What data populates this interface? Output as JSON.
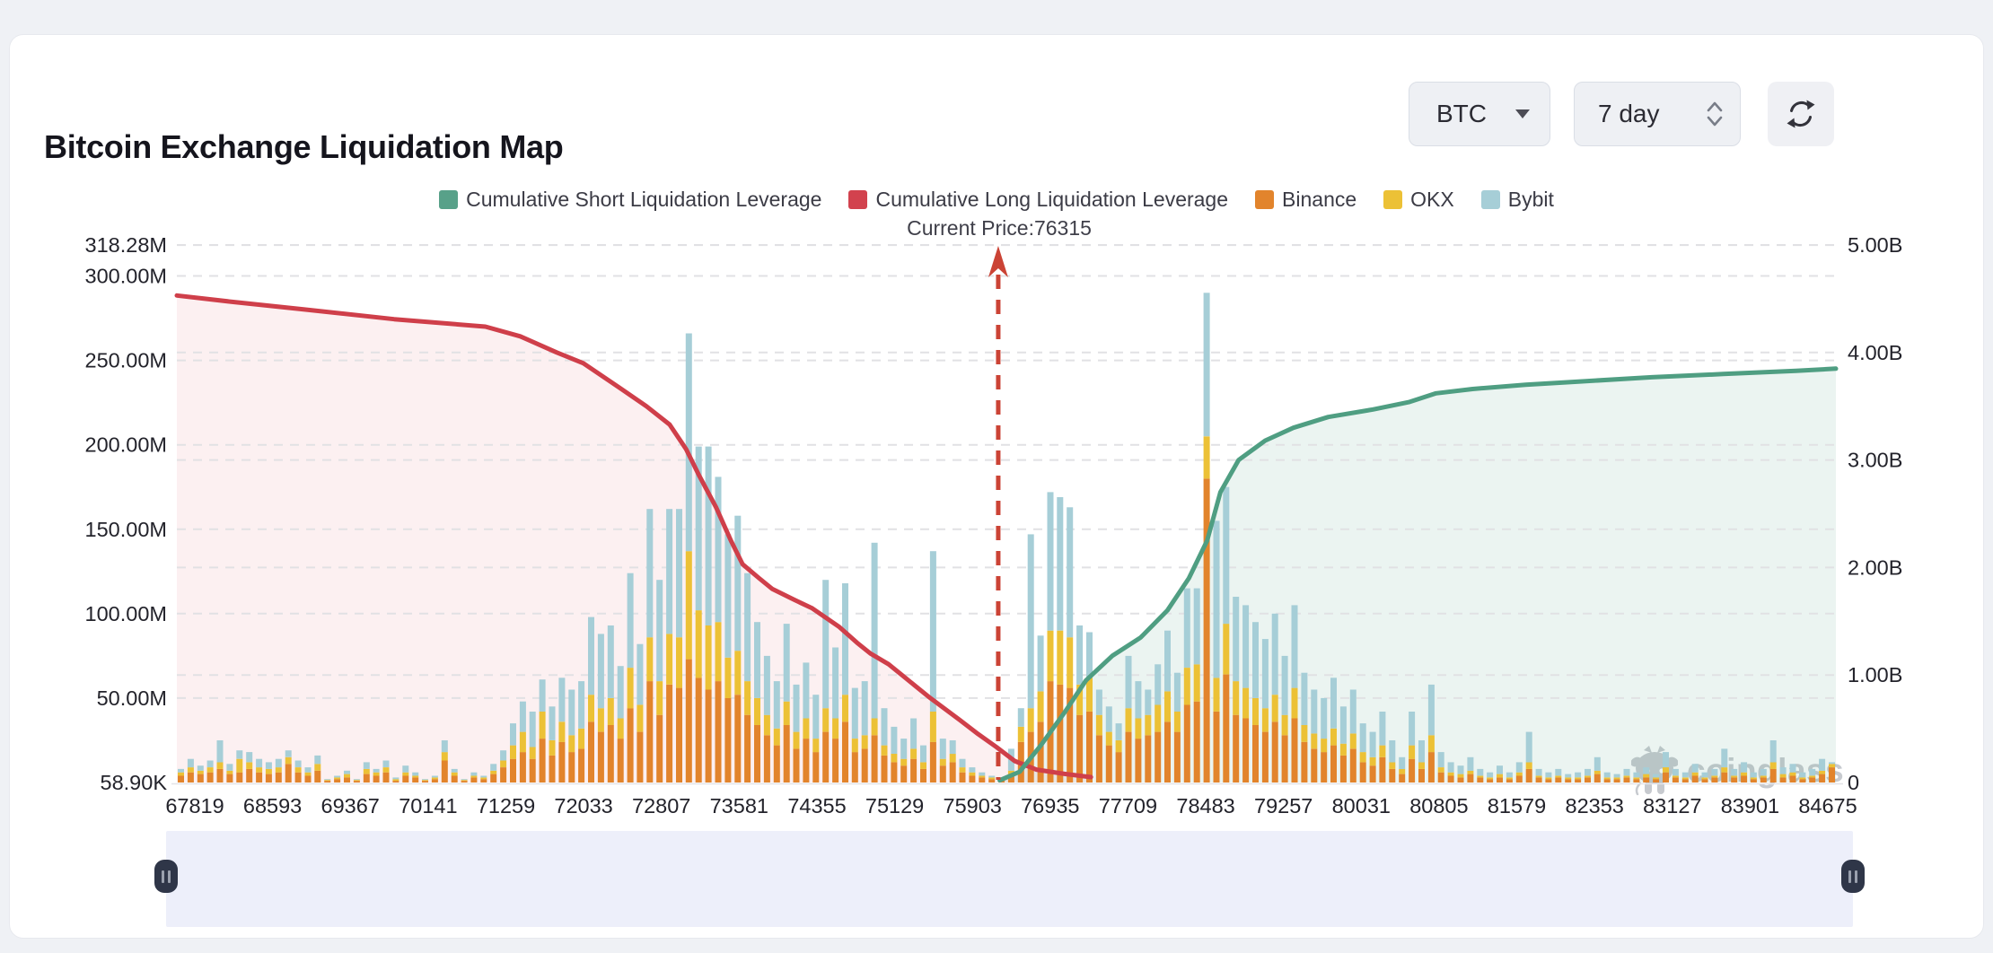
{
  "header": {
    "title": "Bitcoin Exchange Liquidation Map"
  },
  "controls": {
    "symbol_select": {
      "value": "BTC"
    },
    "period_select": {
      "value": "7 day"
    }
  },
  "legend": {
    "items": [
      {
        "label": "Cumulative Short Liquidation Leverage",
        "color": "#58a189"
      },
      {
        "label": "Cumulative Long Liquidation Leverage",
        "color": "#d2424e"
      },
      {
        "label": "Binance",
        "color": "#e2842c"
      },
      {
        "label": "OKX",
        "color": "#ecc136"
      },
      {
        "label": "Bybit",
        "color": "#a6ced7"
      }
    ]
  },
  "watermark": {
    "text": "coinglass"
  },
  "chart_data": {
    "type": "bar+line",
    "title": "Bitcoin Exchange Liquidation Map",
    "current_price": {
      "label": "Current Price:76315",
      "value": 76315,
      "x_frac": 0.4951,
      "color": "#cb4335"
    },
    "left_axis": {
      "unit": "M",
      "ticks": [
        {
          "label": "318.28M",
          "value": 318.28
        },
        {
          "label": "300.00M",
          "value": 300
        },
        {
          "label": "250.00M",
          "value": 250
        },
        {
          "label": "200.00M",
          "value": 200
        },
        {
          "label": "150.00M",
          "value": 150
        },
        {
          "label": "100.00M",
          "value": 100
        },
        {
          "label": "50.00M",
          "value": 50
        },
        {
          "label": "58.90K",
          "value": 0.0589
        }
      ]
    },
    "right_axis": {
      "unit": "B",
      "ticks": [
        {
          "label": "5.00B",
          "value": 5
        },
        {
          "label": "4.00B",
          "value": 4
        },
        {
          "label": "3.00B",
          "value": 3
        },
        {
          "label": "2.00B",
          "value": 2
        },
        {
          "label": "1.00B",
          "value": 1
        },
        {
          "label": "0",
          "value": 0
        }
      ]
    },
    "x_axis": {
      "labels": [
        "67819",
        "68593",
        "69367",
        "70141",
        "71259",
        "72033",
        "72807",
        "73581",
        "74355",
        "75129",
        "75903",
        "76935",
        "77709",
        "78483",
        "79257",
        "80031",
        "80805",
        "81579",
        "82353",
        "83127",
        "83901",
        "84675"
      ]
    },
    "bar_series_names": [
      "Binance",
      "OKX",
      "Bybit"
    ],
    "bar_colors": [
      "#e2842c",
      "#ecc136",
      "#a6ced7"
    ],
    "stacks_m": [
      [
        4,
        2,
        2
      ],
      [
        6,
        3,
        5
      ],
      [
        5,
        2,
        3
      ],
      [
        6,
        3,
        4
      ],
      [
        8,
        4,
        13
      ],
      [
        5,
        2,
        4
      ],
      [
        6,
        8,
        5
      ],
      [
        8,
        4,
        6
      ],
      [
        6,
        3,
        5
      ],
      [
        5,
        3,
        4
      ],
      [
        6,
        3,
        5
      ],
      [
        11,
        4,
        4
      ],
      [
        6,
        3,
        4
      ],
      [
        4,
        2,
        3
      ],
      [
        7,
        4,
        5
      ],
      [
        1,
        0.5,
        0.5
      ],
      [
        2,
        1,
        1
      ],
      [
        3,
        2,
        2
      ],
      [
        1,
        0.5,
        0.5
      ],
      [
        5,
        3,
        4
      ],
      [
        4,
        2,
        2
      ],
      [
        6,
        3,
        4
      ],
      [
        1,
        1,
        1
      ],
      [
        4,
        2,
        4
      ],
      [
        3,
        1,
        2
      ],
      [
        1,
        0.5,
        0.5
      ],
      [
        2,
        1,
        1
      ],
      [
        13,
        5,
        7
      ],
      [
        4,
        2,
        2
      ],
      [
        1,
        0.5,
        0.5
      ],
      [
        3,
        1,
        2
      ],
      [
        2,
        1,
        1
      ],
      [
        5,
        2,
        4
      ],
      [
        9,
        4,
        6
      ],
      [
        14,
        8,
        13
      ],
      [
        18,
        12,
        18
      ],
      [
        14,
        7,
        21
      ],
      [
        26,
        16,
        19
      ],
      [
        16,
        9,
        20
      ],
      [
        24,
        12,
        26
      ],
      [
        18,
        10,
        27
      ],
      [
        20,
        12,
        28
      ],
      [
        36,
        16,
        46
      ],
      [
        30,
        14,
        44
      ],
      [
        34,
        16,
        43
      ],
      [
        26,
        12,
        31
      ],
      [
        44,
        24,
        56
      ],
      [
        30,
        16,
        36
      ],
      [
        60,
        26,
        76
      ],
      [
        40,
        20,
        60
      ],
      [
        58,
        30,
        74
      ],
      [
        56,
        30,
        76
      ],
      [
        73,
        64,
        129
      ],
      [
        62,
        40,
        97
      ],
      [
        55,
        38,
        106
      ],
      [
        60,
        35,
        86
      ],
      [
        50,
        24,
        73
      ],
      [
        52,
        26,
        80
      ],
      [
        40,
        20,
        64
      ],
      [
        34,
        16,
        45
      ],
      [
        28,
        12,
        35
      ],
      [
        22,
        10,
        28
      ],
      [
        34,
        14,
        46
      ],
      [
        20,
        10,
        28
      ],
      [
        26,
        12,
        33
      ],
      [
        18,
        8,
        26
      ],
      [
        30,
        14,
        76
      ],
      [
        26,
        12,
        42
      ],
      [
        36,
        16,
        66
      ],
      [
        18,
        8,
        30
      ],
      [
        20,
        8,
        32
      ],
      [
        28,
        10,
        104
      ],
      [
        16,
        6,
        22
      ],
      [
        12,
        5,
        16
      ],
      [
        10,
        4,
        12
      ],
      [
        14,
        6,
        18
      ],
      [
        8,
        4,
        10
      ],
      [
        24,
        18,
        95
      ],
      [
        10,
        4,
        12
      ],
      [
        12,
        5,
        8
      ],
      [
        6,
        3,
        5
      ],
      [
        4,
        2,
        3
      ],
      [
        3,
        1,
        2
      ],
      [
        2,
        1,
        1
      ],
      [
        1,
        0.5,
        0.5
      ],
      [
        5,
        2,
        13
      ],
      [
        24,
        9,
        11
      ],
      [
        30,
        14,
        103
      ],
      [
        36,
        18,
        33
      ],
      [
        60,
        30,
        82
      ],
      [
        58,
        32,
        79
      ],
      [
        56,
        30,
        77
      ],
      [
        40,
        18,
        35
      ],
      [
        42,
        20,
        27
      ],
      [
        28,
        12,
        15
      ],
      [
        22,
        8,
        15
      ],
      [
        18,
        7,
        10
      ],
      [
        30,
        14,
        31
      ],
      [
        26,
        12,
        22
      ],
      [
        28,
        12,
        15
      ],
      [
        30,
        16,
        24
      ],
      [
        36,
        18,
        36
      ],
      [
        30,
        12,
        23
      ],
      [
        46,
        22,
        47
      ],
      [
        48,
        22,
        45
      ],
      [
        180,
        25,
        85
      ],
      [
        42,
        20,
        93
      ],
      [
        64,
        30,
        81
      ],
      [
        40,
        20,
        50
      ],
      [
        38,
        18,
        49
      ],
      [
        34,
        16,
        45
      ],
      [
        30,
        14,
        41
      ],
      [
        36,
        16,
        48
      ],
      [
        28,
        12,
        35
      ],
      [
        38,
        18,
        49
      ],
      [
        24,
        10,
        31
      ],
      [
        20,
        9,
        26
      ],
      [
        18,
        8,
        24
      ],
      [
        22,
        10,
        30
      ],
      [
        16,
        7,
        22
      ],
      [
        20,
        9,
        26
      ],
      [
        12,
        6,
        17
      ],
      [
        10,
        5,
        15
      ],
      [
        15,
        7,
        20
      ],
      [
        8,
        4,
        13
      ],
      [
        5,
        3,
        7
      ],
      [
        14,
        8,
        20
      ],
      [
        8,
        4,
        13
      ],
      [
        18,
        10,
        30
      ],
      [
        6,
        3,
        9
      ],
      [
        4,
        2,
        6
      ],
      [
        3,
        2,
        5
      ],
      [
        5,
        2,
        8
      ],
      [
        3,
        1,
        4
      ],
      [
        2,
        1,
        3
      ],
      [
        3,
        2,
        5
      ],
      [
        2,
        1,
        3
      ],
      [
        4,
        2,
        6
      ],
      [
        8,
        4,
        18
      ],
      [
        3,
        1,
        4
      ],
      [
        2,
        1,
        3
      ],
      [
        3,
        1,
        4
      ],
      [
        2,
        1,
        2
      ],
      [
        2,
        1,
        3
      ],
      [
        3,
        1,
        4
      ],
      [
        5,
        2,
        8
      ],
      [
        2,
        1,
        3
      ],
      [
        2,
        1,
        2
      ],
      [
        3,
        1,
        4
      ],
      [
        2,
        1,
        3
      ],
      [
        3,
        2,
        4
      ],
      [
        2,
        1,
        2
      ],
      [
        6,
        3,
        9
      ],
      [
        3,
        1,
        4
      ],
      [
        2,
        1,
        3
      ],
      [
        4,
        2,
        5
      ],
      [
        2,
        1,
        3
      ],
      [
        3,
        1,
        4
      ],
      [
        6,
        3,
        11
      ],
      [
        3,
        1,
        4
      ],
      [
        4,
        2,
        6
      ],
      [
        2,
        1,
        3
      ],
      [
        3,
        1,
        4
      ],
      [
        8,
        4,
        13
      ],
      [
        3,
        2,
        4
      ],
      [
        4,
        2,
        5
      ],
      [
        2,
        1,
        3
      ],
      [
        3,
        1,
        4
      ],
      [
        5,
        2,
        7
      ],
      [
        9,
        2,
        1
      ]
    ],
    "lines": [
      {
        "name": "Cumulative Long Liquidation Leverage",
        "axis": "right",
        "color": "#cf3f4a",
        "fill": "rgba(213,68,82,0.08)",
        "points": [
          [
            0,
            4.53
          ],
          [
            0.034,
            4.47
          ],
          [
            0.077,
            4.4
          ],
          [
            0.131,
            4.31
          ],
          [
            0.186,
            4.24
          ],
          [
            0.207,
            4.15
          ],
          [
            0.229,
            4.0
          ],
          [
            0.245,
            3.9
          ],
          [
            0.267,
            3.67
          ],
          [
            0.283,
            3.5
          ],
          [
            0.297,
            3.33
          ],
          [
            0.307,
            3.1
          ],
          [
            0.315,
            2.85
          ],
          [
            0.325,
            2.56
          ],
          [
            0.334,
            2.25
          ],
          [
            0.341,
            2.03
          ],
          [
            0.351,
            1.9
          ],
          [
            0.359,
            1.8
          ],
          [
            0.372,
            1.7
          ],
          [
            0.383,
            1.62
          ],
          [
            0.399,
            1.45
          ],
          [
            0.41,
            1.3
          ],
          [
            0.418,
            1.2
          ],
          [
            0.429,
            1.1
          ],
          [
            0.437,
            1.0
          ],
          [
            0.453,
            0.8
          ],
          [
            0.472,
            0.58
          ],
          [
            0.483,
            0.45
          ],
          [
            0.494,
            0.33
          ],
          [
            0.505,
            0.2
          ],
          [
            0.518,
            0.12
          ],
          [
            0.535,
            0.08
          ],
          [
            0.551,
            0.05
          ]
        ]
      },
      {
        "name": "Cumulative Short Liquidation Leverage",
        "axis": "right",
        "color": "#4f9e82",
        "fill": "rgba(87,163,137,0.12)",
        "points": [
          [
            0.496,
            0.02
          ],
          [
            0.508,
            0.1
          ],
          [
            0.521,
            0.35
          ],
          [
            0.535,
            0.65
          ],
          [
            0.548,
            0.95
          ],
          [
            0.564,
            1.18
          ],
          [
            0.581,
            1.35
          ],
          [
            0.597,
            1.6
          ],
          [
            0.61,
            1.9
          ],
          [
            0.621,
            2.25
          ],
          [
            0.629,
            2.7
          ],
          [
            0.64,
            3.0
          ],
          [
            0.656,
            3.18
          ],
          [
            0.673,
            3.3
          ],
          [
            0.694,
            3.4
          ],
          [
            0.721,
            3.47
          ],
          [
            0.743,
            3.54
          ],
          [
            0.759,
            3.62
          ],
          [
            0.781,
            3.66
          ],
          [
            0.813,
            3.7
          ],
          [
            0.846,
            3.73
          ],
          [
            0.889,
            3.77
          ],
          [
            0.932,
            3.8
          ],
          [
            0.976,
            3.83
          ],
          [
            1.0,
            3.85
          ]
        ]
      }
    ]
  }
}
